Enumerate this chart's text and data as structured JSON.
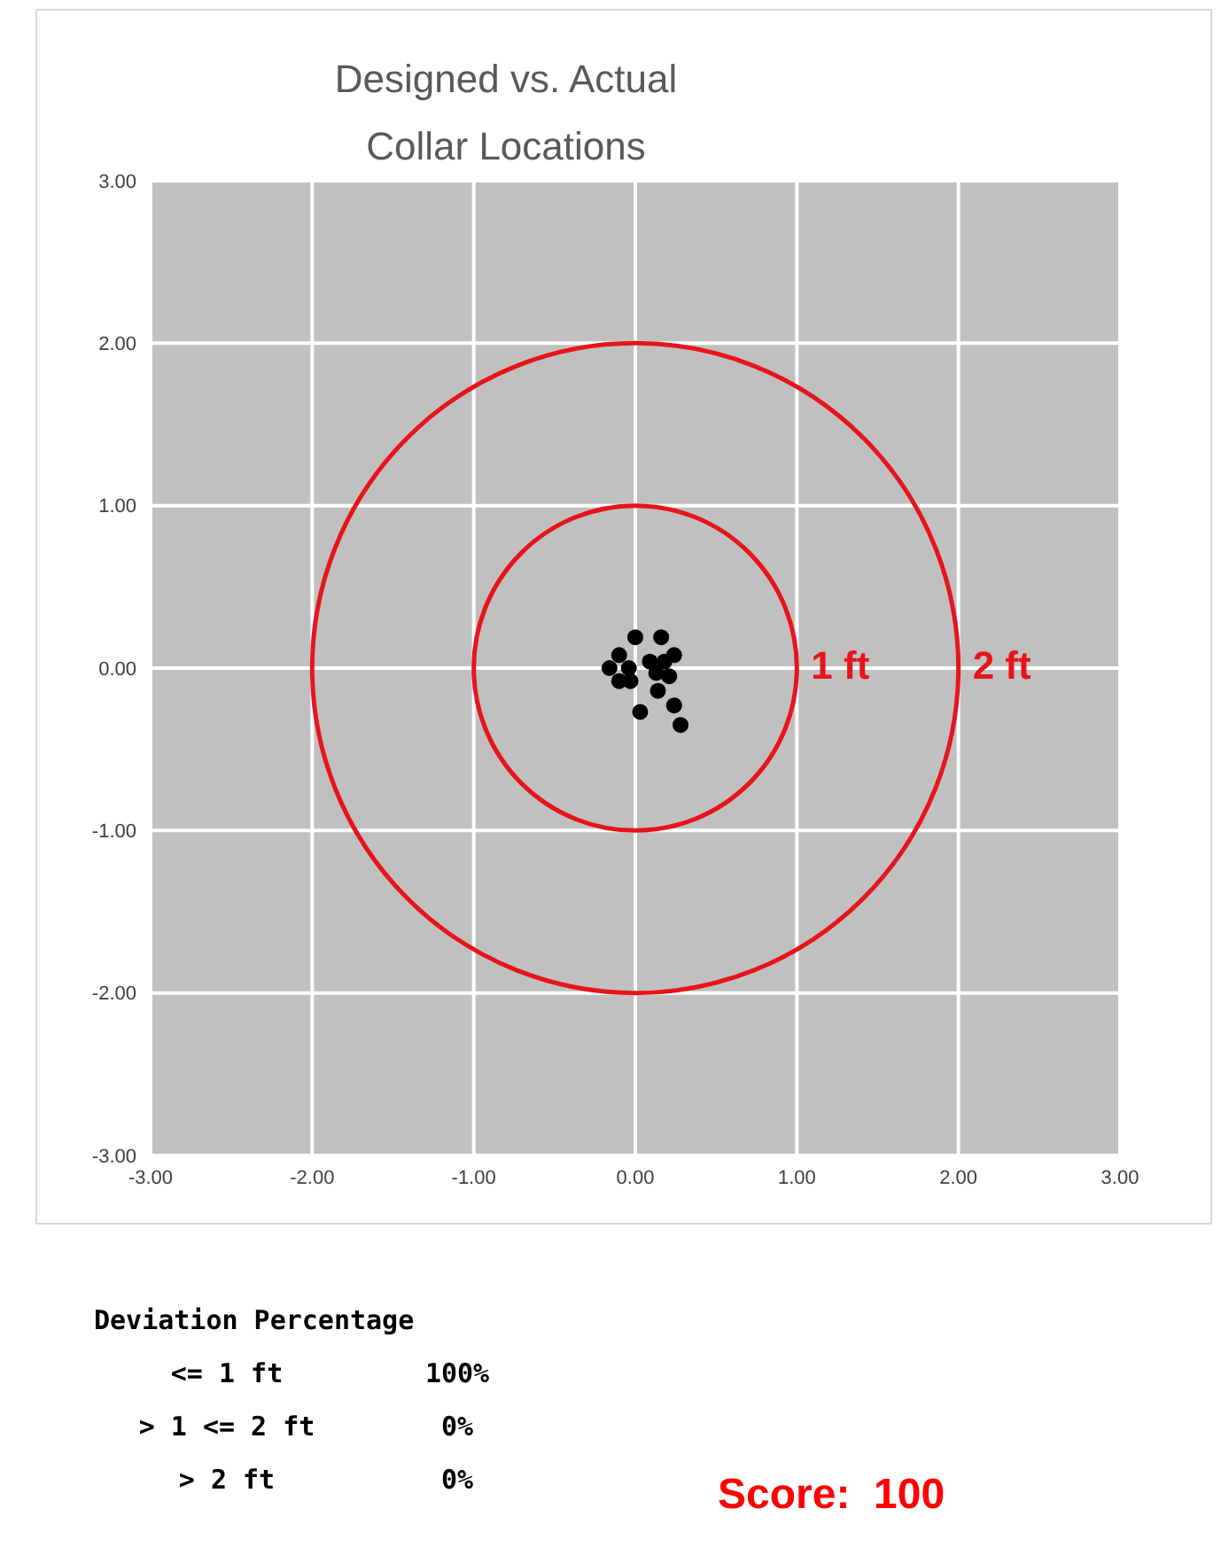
{
  "chart_data": {
    "type": "scatter",
    "title": "Designed vs. Actual Collar Locations",
    "xlim": [
      -3,
      3
    ],
    "ylim": [
      -3,
      3
    ],
    "xticks": [
      {
        "value": -3,
        "label": "-3.00"
      },
      {
        "value": -2,
        "label": "-2.00"
      },
      {
        "value": -1,
        "label": "-1.00"
      },
      {
        "value": 0,
        "label": "0.00"
      },
      {
        "value": 1,
        "label": "1.00"
      },
      {
        "value": 2,
        "label": "2.00"
      },
      {
        "value": 3,
        "label": "3.00"
      }
    ],
    "yticks": [
      {
        "value": -3,
        "label": "-3.00"
      },
      {
        "value": -2,
        "label": "-2.00"
      },
      {
        "value": -1,
        "label": "-1.00"
      },
      {
        "value": 0,
        "label": "0.00"
      },
      {
        "value": 1,
        "label": "1.00"
      },
      {
        "value": 2,
        "label": "2.00"
      },
      {
        "value": 3,
        "label": "3.00"
      }
    ],
    "grid": true,
    "marker": "circle",
    "legend": false,
    "series": [
      {
        "color": "#000000",
        "x": [
          -0.16,
          -0.1,
          -0.1,
          -0.04,
          -0.03,
          0.0,
          0.16,
          0.24,
          0.21,
          0.14,
          0.24,
          0.03,
          0.28,
          0.09,
          0.13,
          0.18
        ],
        "values": [
          0.0,
          0.08,
          -0.08,
          0.0,
          -0.08,
          0.19,
          0.19,
          0.08,
          -0.05,
          -0.14,
          -0.23,
          -0.27,
          -0.35,
          0.04,
          -0.03,
          0.04
        ]
      }
    ],
    "annotations": [
      "Deviation Percentage",
      "<= 1 ft",
      "100%",
      "> 1 <= 2 ft",
      "0%",
      "> 2 ft",
      "0%",
      "Score:  100",
      "1 ft",
      "2 ft"
    ]
  }
}
